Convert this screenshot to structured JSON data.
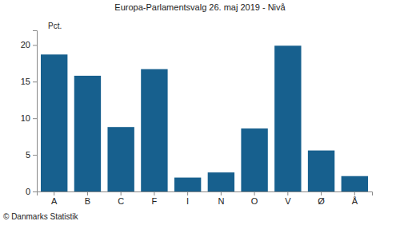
{
  "chart_data": {
    "type": "bar",
    "title": "Europa-Parlamentsvalg 26. maj 2019 - Nivå",
    "ylabel": "Pct.",
    "caption": "© Danmarks Statistik",
    "categories": [
      "A",
      "B",
      "C",
      "F",
      "I",
      "N",
      "O",
      "V",
      "Ø",
      "Å"
    ],
    "values": [
      18.7,
      15.8,
      8.8,
      16.7,
      1.9,
      2.6,
      8.6,
      19.9,
      5.6,
      2.1
    ],
    "color": "#17608e",
    "ylim": [
      0,
      22
    ],
    "yticks": [
      0,
      5,
      10,
      15,
      20
    ],
    "grid": false
  }
}
